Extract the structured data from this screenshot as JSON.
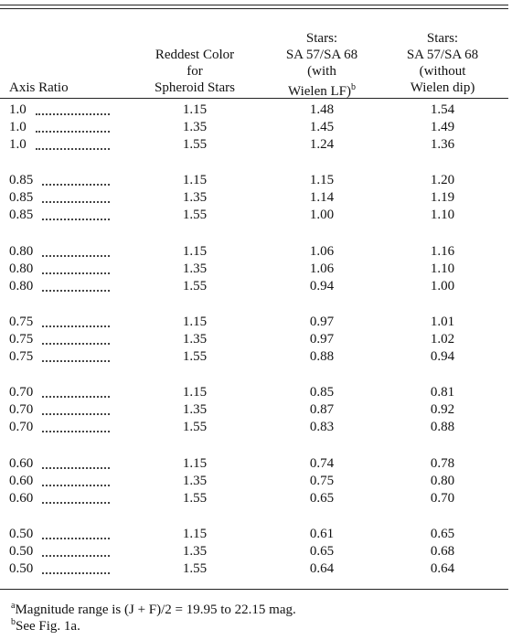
{
  "table": {
    "columns": [
      {
        "lines": [
          "Axis Ratio"
        ]
      },
      {
        "lines": [
          "Reddest Color",
          "for",
          "Spheroid Stars"
        ]
      },
      {
        "lines": [
          "Stars:",
          "SA 57/SA 68",
          "(with",
          "Wielen LF)"
        ],
        "note": "b"
      },
      {
        "lines": [
          "Stars:",
          "SA 57/SA 68",
          "(without",
          "Wielen dip)"
        ]
      }
    ],
    "groups": [
      [
        [
          "1.0",
          "1.15",
          "1.48",
          "1.54"
        ],
        [
          "1.0",
          "1.35",
          "1.45",
          "1.49"
        ],
        [
          "1.0",
          "1.55",
          "1.24",
          "1.36"
        ]
      ],
      [
        [
          "0.85",
          "1.15",
          "1.15",
          "1.20"
        ],
        [
          "0.85",
          "1.35",
          "1.14",
          "1.19"
        ],
        [
          "0.85",
          "1.55",
          "1.00",
          "1.10"
        ]
      ],
      [
        [
          "0.80",
          "1.15",
          "1.06",
          "1.16"
        ],
        [
          "0.80",
          "1.35",
          "1.06",
          "1.10"
        ],
        [
          "0.80",
          "1.55",
          "0.94",
          "1.00"
        ]
      ],
      [
        [
          "0.75",
          "1.15",
          "0.97",
          "1.01"
        ],
        [
          "0.75",
          "1.35",
          "0.97",
          "1.02"
        ],
        [
          "0.75",
          "1.55",
          "0.88",
          "0.94"
        ]
      ],
      [
        [
          "0.70",
          "1.15",
          "0.85",
          "0.81"
        ],
        [
          "0.70",
          "1.35",
          "0.87",
          "0.92"
        ],
        [
          "0.70",
          "1.55",
          "0.83",
          "0.88"
        ]
      ],
      [
        [
          "0.60",
          "1.15",
          "0.74",
          "0.78"
        ],
        [
          "0.60",
          "1.35",
          "0.75",
          "0.80"
        ],
        [
          "0.60",
          "1.55",
          "0.65",
          "0.70"
        ]
      ],
      [
        [
          "0.50",
          "1.15",
          "0.61",
          "0.65"
        ],
        [
          "0.50",
          "1.35",
          "0.65",
          "0.68"
        ],
        [
          "0.50",
          "1.55",
          "0.64",
          "0.64"
        ]
      ]
    ]
  },
  "footnotes": [
    {
      "mark": "a",
      "text": "Magnitude range is (J + F)/2 = 19.95 to 22.15 mag."
    },
    {
      "mark": "b",
      "text": "See Fig. 1a."
    }
  ]
}
